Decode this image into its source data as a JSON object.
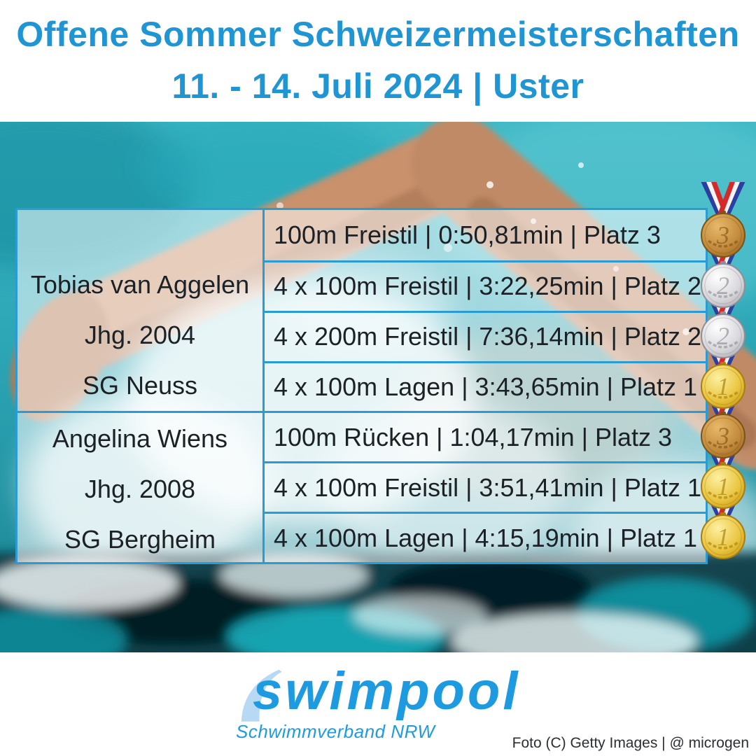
{
  "header": {
    "title": "Offene Sommer Schweizermeisterschaften",
    "subtitle": "11. - 14. Juli 2024 | Uster"
  },
  "table": {
    "athletes": [
      {
        "name": "Tobias van Aggelen",
        "year": "Jhg. 2004",
        "club": "SG Neuss",
        "results": [
          {
            "text": "100m Freistil | 0:50,81min | Platz 3",
            "medal": "bronze",
            "rank": "3"
          },
          {
            "text": "4 x 100m Freistil | 3:22,25min | Platz 2",
            "medal": "silver",
            "rank": "2"
          },
          {
            "text": "4 x 200m Freistil | 7:36,14min | Platz 2",
            "medal": "silver",
            "rank": "2"
          },
          {
            "text": "4 x 100m Lagen | 3:43,65min | Platz 1",
            "medal": "gold",
            "rank": "1"
          }
        ]
      },
      {
        "name": "Angelina Wiens",
        "year": "Jhg. 2008",
        "club": "SG Bergheim",
        "results": [
          {
            "text": "100m Rücken | 1:04,17min | Platz 3",
            "medal": "bronze",
            "rank": "3"
          },
          {
            "text": "4 x 100m Freistil | 3:51,41min | Platz 1",
            "medal": "gold",
            "rank": "1"
          },
          {
            "text": "4 x 100m Lagen | 4:15,19min | Platz 1",
            "medal": "gold",
            "rank": "1"
          }
        ]
      }
    ]
  },
  "footer": {
    "logo_text": "swimpool",
    "logo_subtitle": "Schwimmverband NRW",
    "credit": "Foto (C) Getty Images | @ microgen"
  },
  "colors": {
    "accent_blue": "#1f96d3",
    "table_border": "#2b9bd5",
    "text_dark": "#1c2126",
    "logo_blue": "#1e9be0",
    "logo_wave": "#b7d9f4",
    "ribbon": {
      "blue": "#2a3f9f",
      "white": "#f4f4f4",
      "red": "#d42a2a"
    },
    "medals": {
      "gold": {
        "c1": "#fdf0a0",
        "c2": "#e9c43e",
        "c3": "#c2940f",
        "stroke": "#a87e10",
        "num": "#9c7406"
      },
      "silver": {
        "c1": "#ffffff",
        "c2": "#d8d8dc",
        "c3": "#a6a6ae",
        "stroke": "#8e8e96",
        "num": "#85858d"
      },
      "bronze": {
        "c1": "#e8b869",
        "c2": "#c28a3c",
        "c3": "#94621d",
        "stroke": "#7a5418",
        "num": "#774e12"
      }
    }
  }
}
